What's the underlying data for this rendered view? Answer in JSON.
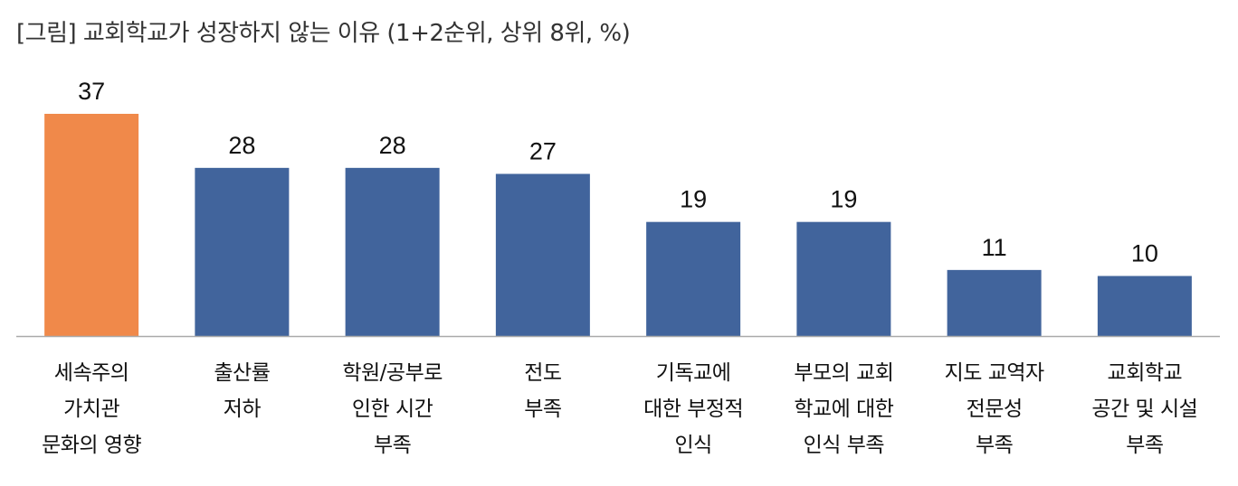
{
  "chart_data": {
    "type": "bar",
    "title": "[그림] 교회학교가 성장하지 않는 이유 (1+2순위, 상위 8위, %)",
    "xlabel": "",
    "ylabel": "",
    "ylim": [
      0,
      37
    ],
    "grid": false,
    "legend": "none",
    "categories": [
      [
        "세속주의",
        "가치관",
        "문화의 영향"
      ],
      [
        "출산률",
        "저하"
      ],
      [
        "학원/공부로",
        "인한 시간",
        "부족"
      ],
      [
        "전도",
        "부족"
      ],
      [
        "기독교에",
        "대한 부정적",
        "인식"
      ],
      [
        "부모의 교회",
        "학교에 대한",
        "인식 부족"
      ],
      [
        "지도 교역자",
        "전문성",
        "부족"
      ],
      [
        "교회학교",
        "공간 및 시설",
        "부족"
      ]
    ],
    "values": [
      37,
      28,
      28,
      27,
      19,
      19,
      11,
      10
    ],
    "colors": {
      "highlight": "#F0894A",
      "default": "#41649C",
      "axis": "#AAAAAA"
    },
    "highlight_index": 0
  }
}
